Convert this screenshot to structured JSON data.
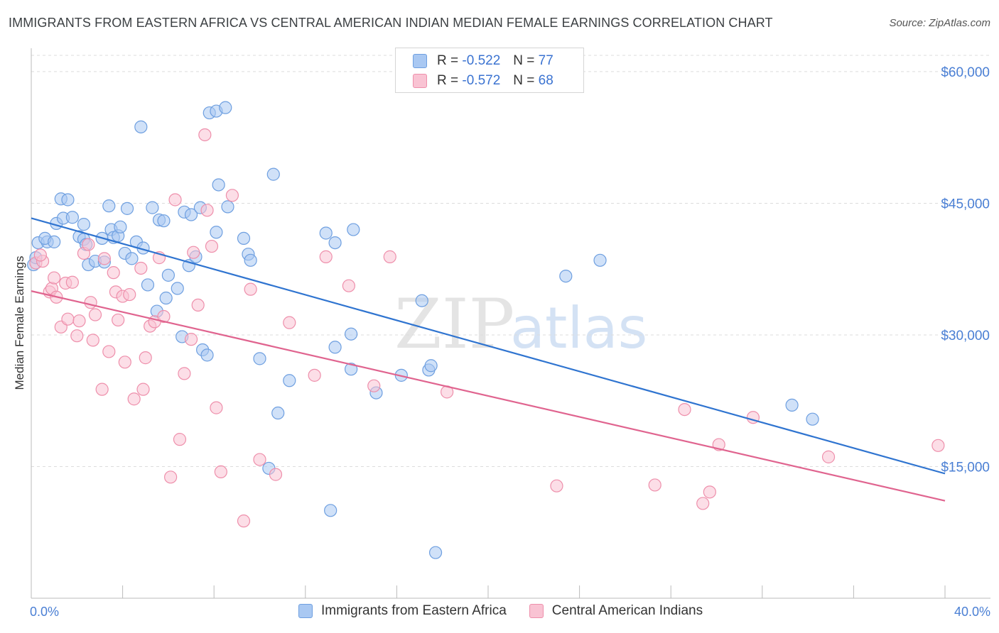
{
  "title": "IMMIGRANTS FROM EASTERN AFRICA VS CENTRAL AMERICAN INDIAN MEDIAN FEMALE EARNINGS CORRELATION CHART",
  "source": "Source: ZipAtlas.com",
  "watermark": {
    "zip": "ZIP",
    "atlas": "atlas"
  },
  "legend_top": {
    "rows": [
      {
        "r_label": "R =",
        "r_value": "-0.522",
        "n_label": "N =",
        "n_value": "77",
        "color": "#a9c8f2",
        "border": "#6e9fe0"
      },
      {
        "r_label": "R =",
        "r_value": "-0.572",
        "n_label": "N =",
        "n_value": "68",
        "color": "#f9c3d3",
        "border": "#ee8fab"
      }
    ]
  },
  "chart_data": {
    "type": "scatter",
    "xlabel": "",
    "ylabel": "Median Female Earnings",
    "xlim": [
      0,
      40
    ],
    "ylim": [
      0,
      62500
    ],
    "x_tick_labels": [
      "0.0%",
      "40.0%"
    ],
    "y_ticks": [
      15000,
      30000,
      45000,
      60000
    ],
    "y_tick_labels": [
      "$15,000",
      "$30,000",
      "$45,000",
      "$60,000"
    ],
    "grid": true,
    "legend": "bottom",
    "series": [
      {
        "name": "Immigrants from Eastern Africa",
        "color": "#6e9fe0",
        "fill": "#a9c8f2",
        "trend": [
          [
            0,
            43300
          ],
          [
            40,
            14200
          ]
        ],
        "points": [
          [
            0.1,
            38000
          ],
          [
            0.3,
            40500
          ],
          [
            0.7,
            40600
          ],
          [
            0.6,
            41000
          ],
          [
            1.0,
            40600
          ],
          [
            1.1,
            42700
          ],
          [
            1.3,
            45500
          ],
          [
            1.6,
            45400
          ],
          [
            1.4,
            43300
          ],
          [
            1.8,
            43400
          ],
          [
            2.3,
            42600
          ],
          [
            2.1,
            41200
          ],
          [
            2.3,
            40900
          ],
          [
            2.4,
            40300
          ],
          [
            2.5,
            38000
          ],
          [
            2.8,
            38400
          ],
          [
            3.2,
            38300
          ],
          [
            3.1,
            41000
          ],
          [
            3.4,
            44700
          ],
          [
            3.5,
            42000
          ],
          [
            3.6,
            41100
          ],
          [
            3.8,
            41300
          ],
          [
            3.9,
            42300
          ],
          [
            4.2,
            44400
          ],
          [
            4.1,
            39300
          ],
          [
            4.4,
            38700
          ],
          [
            4.6,
            40600
          ],
          [
            4.8,
            53700
          ],
          [
            4.9,
            39900
          ],
          [
            5.1,
            35700
          ],
          [
            5.3,
            44500
          ],
          [
            5.5,
            32700
          ],
          [
            5.6,
            43100
          ],
          [
            5.8,
            43000
          ],
          [
            5.9,
            34200
          ],
          [
            6.0,
            36800
          ],
          [
            6.4,
            35300
          ],
          [
            6.6,
            29800
          ],
          [
            6.7,
            44000
          ],
          [
            6.9,
            37900
          ],
          [
            7.0,
            43700
          ],
          [
            7.2,
            38900
          ],
          [
            7.4,
            44500
          ],
          [
            7.5,
            28300
          ],
          [
            7.7,
            27700
          ],
          [
            7.8,
            55300
          ],
          [
            8.1,
            55500
          ],
          [
            8.1,
            41700
          ],
          [
            8.2,
            47100
          ],
          [
            8.5,
            55900
          ],
          [
            8.6,
            44600
          ],
          [
            9.3,
            41000
          ],
          [
            9.5,
            39200
          ],
          [
            9.6,
            38500
          ],
          [
            10.0,
            27300
          ],
          [
            10.4,
            14800
          ],
          [
            10.8,
            21100
          ],
          [
            10.6,
            48300
          ],
          [
            11.3,
            24800
          ],
          [
            12.9,
            41600
          ],
          [
            13.1,
            10000
          ],
          [
            13.3,
            40500
          ],
          [
            13.3,
            28600
          ],
          [
            14.0,
            26100
          ],
          [
            14.1,
            42000
          ],
          [
            14.0,
            30100
          ],
          [
            15.1,
            23400
          ],
          [
            16.2,
            25400
          ],
          [
            17.1,
            33900
          ],
          [
            17.4,
            26000
          ],
          [
            17.5,
            26500
          ],
          [
            17.7,
            5200
          ],
          [
            23.4,
            36700
          ],
          [
            24.9,
            38500
          ],
          [
            33.3,
            22000
          ],
          [
            34.2,
            20400
          ],
          [
            0.2,
            38800
          ]
        ]
      },
      {
        "name": "Central American Indians",
        "color": "#ee8fab",
        "fill": "#f9c3d3",
        "trend": [
          [
            0,
            35000
          ],
          [
            40,
            11100
          ]
        ],
        "points": [
          [
            0.2,
            38200
          ],
          [
            0.5,
            38400
          ],
          [
            0.4,
            39100
          ],
          [
            0.8,
            34900
          ],
          [
            0.9,
            35300
          ],
          [
            1.0,
            36500
          ],
          [
            1.1,
            34300
          ],
          [
            1.3,
            30900
          ],
          [
            1.5,
            35900
          ],
          [
            1.6,
            31800
          ],
          [
            1.8,
            36000
          ],
          [
            2.0,
            29900
          ],
          [
            2.1,
            31600
          ],
          [
            2.3,
            39300
          ],
          [
            2.5,
            40300
          ],
          [
            2.6,
            33700
          ],
          [
            2.7,
            29400
          ],
          [
            2.8,
            32300
          ],
          [
            3.2,
            38700
          ],
          [
            3.1,
            23800
          ],
          [
            3.4,
            28100
          ],
          [
            3.6,
            37100
          ],
          [
            3.7,
            34900
          ],
          [
            3.8,
            31700
          ],
          [
            4.0,
            34400
          ],
          [
            4.1,
            26900
          ],
          [
            4.3,
            34600
          ],
          [
            4.5,
            22700
          ],
          [
            4.8,
            37600
          ],
          [
            4.9,
            23800
          ],
          [
            5.0,
            27400
          ],
          [
            5.2,
            31000
          ],
          [
            5.4,
            31500
          ],
          [
            5.6,
            38800
          ],
          [
            5.8,
            32100
          ],
          [
            6.1,
            13800
          ],
          [
            6.3,
            45400
          ],
          [
            6.5,
            18100
          ],
          [
            6.7,
            25600
          ],
          [
            7.0,
            29500
          ],
          [
            7.1,
            39400
          ],
          [
            7.3,
            33400
          ],
          [
            7.6,
            52800
          ],
          [
            7.7,
            44200
          ],
          [
            7.9,
            40100
          ],
          [
            8.1,
            21700
          ],
          [
            8.3,
            14400
          ],
          [
            8.8,
            45900
          ],
          [
            9.3,
            8800
          ],
          [
            9.6,
            35200
          ],
          [
            10.0,
            15800
          ],
          [
            10.7,
            14100
          ],
          [
            11.3,
            31400
          ],
          [
            12.4,
            25400
          ],
          [
            12.9,
            38900
          ],
          [
            13.9,
            35600
          ],
          [
            15.0,
            24200
          ],
          [
            15.7,
            38900
          ],
          [
            18.2,
            23500
          ],
          [
            23.0,
            12800
          ],
          [
            28.6,
            21500
          ],
          [
            27.3,
            12900
          ],
          [
            29.4,
            10800
          ],
          [
            29.7,
            12100
          ],
          [
            30.1,
            17500
          ],
          [
            31.6,
            20600
          ],
          [
            34.9,
            16100
          ],
          [
            39.7,
            17400
          ]
        ]
      }
    ]
  }
}
